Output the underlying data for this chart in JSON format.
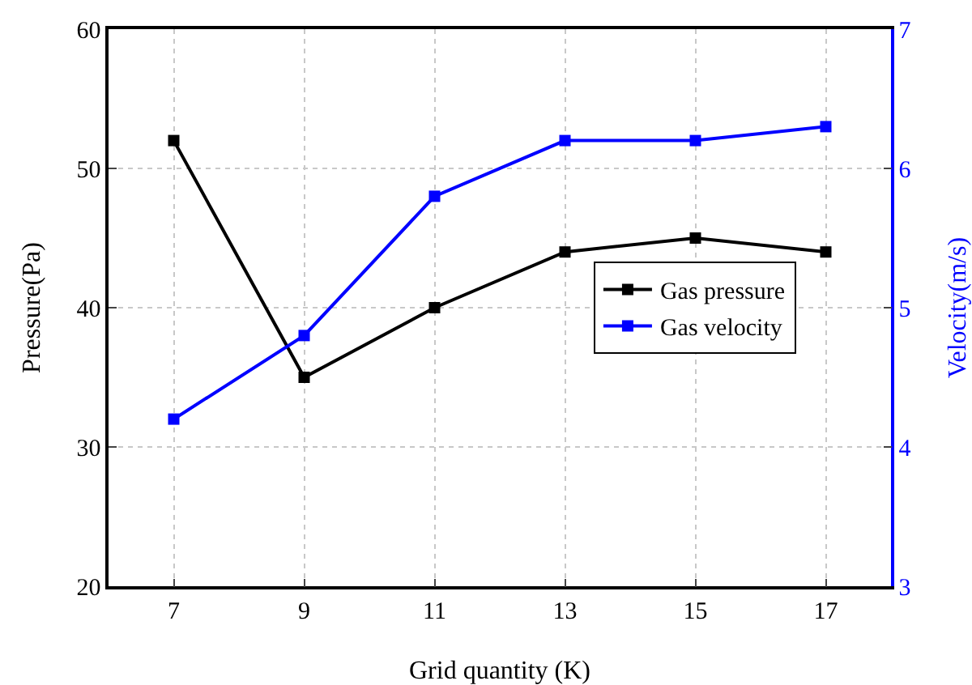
{
  "chart_data": {
    "type": "line",
    "xlabel": "Grid quantity (K)",
    "ylabel": "Pressure(Pa)",
    "y2label": "Velocity(m/s)",
    "x": [
      7,
      9,
      11,
      13,
      15,
      17
    ],
    "series": [
      {
        "name": "Gas pressure",
        "color": "#000000",
        "values": [
          52,
          35,
          40,
          44,
          45,
          44
        ]
      },
      {
        "name": "Gas velocity",
        "color": "#0000ff",
        "axis": "y2",
        "values": [
          4.2,
          4.8,
          5.8,
          6.2,
          6.2,
          6.3
        ]
      }
    ],
    "xlim": [
      6,
      18
    ],
    "xticks": [
      7,
      9,
      11,
      13,
      15,
      17
    ],
    "ylim": [
      20,
      60
    ],
    "yticks": [
      20,
      30,
      40,
      50,
      60
    ],
    "y2lim": [
      3,
      7
    ],
    "y2ticks": [
      3,
      4,
      5,
      6,
      7
    ],
    "grid": true,
    "legend": "right",
    "marker": "square",
    "line_style": "solid"
  }
}
